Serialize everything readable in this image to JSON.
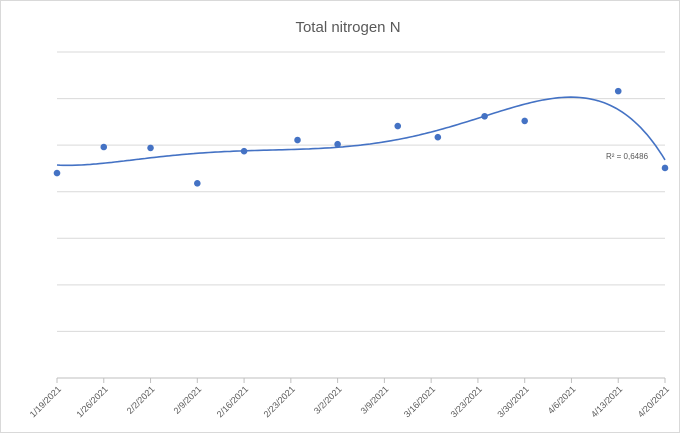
{
  "chart_data": {
    "type": "scatter",
    "title": "Total nitrogen N",
    "x": [
      "1/19/2021",
      "1/26/2021",
      "2/2/2021",
      "2/9/2021",
      "2/16/2021",
      "2/24/2021",
      "3/2/2021",
      "3/11/2021",
      "3/17/2021",
      "3/24/2021",
      "3/30/2021",
      "4/13/2021",
      "4/20/2021"
    ],
    "series": [
      {
        "color": "#4472c4",
        "values": [
          4.4,
          4.96,
          4.94,
          4.18,
          4.87,
          5.11,
          5.02,
          5.41,
          5.17,
          5.62,
          5.52,
          6.16,
          4.51
        ]
      }
    ],
    "trendline": {
      "type": "polynomial",
      "order": 5,
      "color": "#4472c4",
      "annotation": "R² = 0,6486"
    },
    "xlim": [
      "1/19/2021",
      "4/20/2021"
    ],
    "xticks": [
      "1/19/2021",
      "1/26/2021",
      "2/2/2021",
      "2/9/2021",
      "2/16/2021",
      "2/23/2021",
      "3/2/2021",
      "3/9/2021",
      "3/16/2021",
      "3/23/2021",
      "3/30/2021",
      "4/6/2021",
      "4/13/2021",
      "4/20/2021"
    ],
    "ylim": [
      0,
      7
    ],
    "yticks": [
      0,
      1,
      2,
      3,
      4,
      5,
      6,
      7
    ],
    "grid": true
  }
}
